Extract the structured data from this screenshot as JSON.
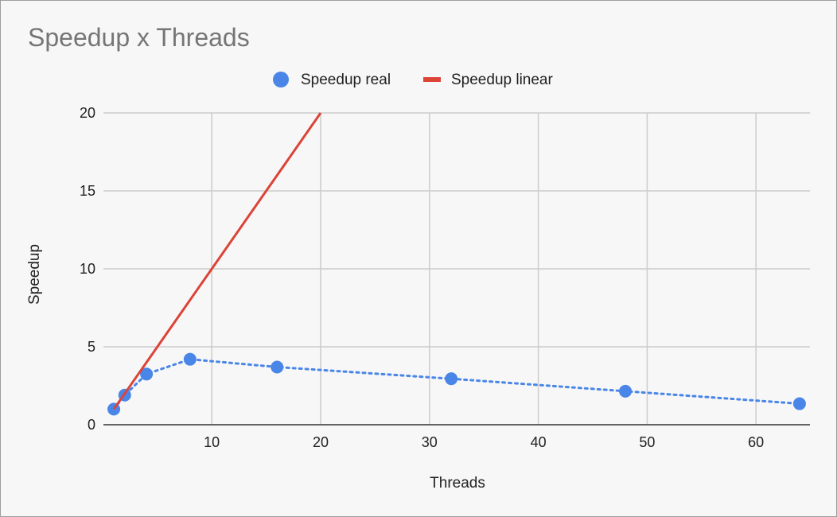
{
  "chart_data": {
    "type": "line",
    "title": "Speedup x Threads",
    "xlabel": "Threads",
    "ylabel": "Speedup",
    "xlim": [
      0,
      65
    ],
    "ylim": [
      0,
      20
    ],
    "x_ticks": [
      10,
      20,
      30,
      40,
      50,
      60
    ],
    "y_ticks": [
      0,
      5,
      10,
      15,
      20
    ],
    "grid": true,
    "legend_position": "top",
    "series": [
      {
        "name": "Speedup real",
        "style": "dotted line with markers",
        "color": "#4a86e8",
        "x": [
          1,
          2,
          4,
          8,
          16,
          32,
          48,
          64
        ],
        "values": [
          1.0,
          1.9,
          3.25,
          4.2,
          3.7,
          2.95,
          2.15,
          1.35
        ]
      },
      {
        "name": "Speedup linear",
        "style": "solid line",
        "color": "#db4437",
        "x": [
          1,
          2,
          4,
          8,
          16,
          20
        ],
        "values": [
          1,
          2,
          4,
          8,
          16,
          20
        ]
      }
    ]
  }
}
